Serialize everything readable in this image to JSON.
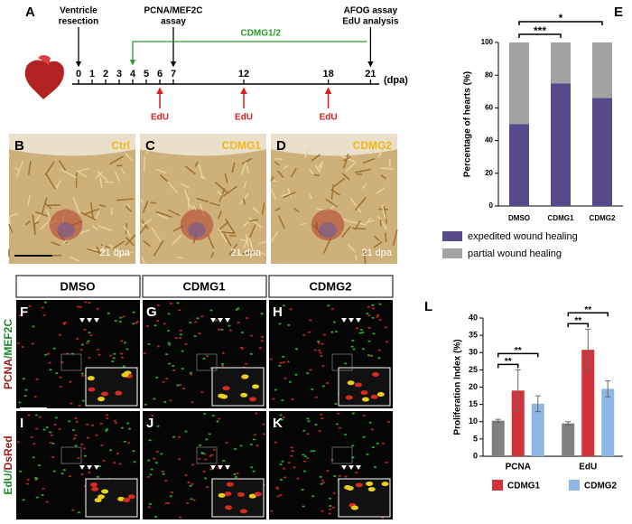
{
  "panel_labels": [
    "A",
    "B",
    "C",
    "D",
    "E",
    "F",
    "G",
    "H",
    "I",
    "J",
    "K",
    "L"
  ],
  "timeline": {
    "ticks": [
      0,
      1,
      2,
      3,
      4,
      5,
      6,
      7,
      12,
      18,
      21
    ],
    "unit": "(dpa)",
    "events": [
      {
        "lines": [
          "Ventricle",
          "resection"
        ],
        "day": 0
      },
      {
        "lines": [
          "PCNA/MEF2C",
          "assay"
        ],
        "day": 7
      },
      {
        "lines": [
          "AFOG assay",
          "EdU analysis"
        ],
        "day": 21
      }
    ],
    "treatment": {
      "label": "CDMG1/2",
      "start": 4,
      "end": 21
    },
    "edu": {
      "label": "EdU",
      "days": [
        6,
        12,
        18
      ]
    }
  },
  "stain_panels": [
    {
      "caption": "Ctrl",
      "note": "21 dpa"
    },
    {
      "caption": "CDMG1",
      "note": "21 dpa"
    },
    {
      "caption": "CDMG2",
      "note": "21 dpa"
    }
  ],
  "fluor": {
    "columns": [
      "DMSO",
      "CDMG1",
      "CDMG2"
    ],
    "rows": [
      [
        "PCNA",
        "/MEF2C"
      ],
      [
        "EdU/",
        "DsRed"
      ]
    ]
  },
  "chart_data": [
    {
      "type": "stacked_bar",
      "ylabel": "Percentage of hearts (%)",
      "categories": [
        "DMSO",
        "CDMG1",
        "CDMG2"
      ],
      "series": [
        {
          "name": "expedited wound healing",
          "color": "#58498a",
          "values": [
            50,
            75,
            66
          ]
        },
        {
          "name": "partial wound healing",
          "color": "#a3a3a3",
          "values": [
            50,
            25,
            34
          ]
        }
      ],
      "ylim": [
        0,
        100
      ],
      "yticks": [
        0,
        20,
        40,
        60,
        80,
        100
      ],
      "annotations": [
        "***",
        "*"
      ]
    },
    {
      "type": "grouped_bar",
      "ylabel": "Proliferation Index (%)",
      "categories": [
        "PCNA",
        "EdU"
      ],
      "series": [
        {
          "color": "#7f7f7f",
          "values": [
            10.3,
            9.5
          ],
          "errors": [
            0.4,
            0.5
          ]
        },
        {
          "name": "CDMG1",
          "color": "#d2323a",
          "values": [
            19,
            30.8
          ],
          "errors": [
            6,
            6
          ]
        },
        {
          "name": "CDMG2",
          "color": "#8fb5e3",
          "values": [
            15.2,
            19.5
          ],
          "errors": [
            2.3,
            2.3
          ]
        }
      ],
      "ylim": [
        0,
        40
      ],
      "yticks": [
        0,
        5,
        10,
        15,
        20,
        25,
        30,
        35,
        40
      ],
      "annotations": [
        "**",
        "**",
        "**",
        "**"
      ]
    }
  ]
}
